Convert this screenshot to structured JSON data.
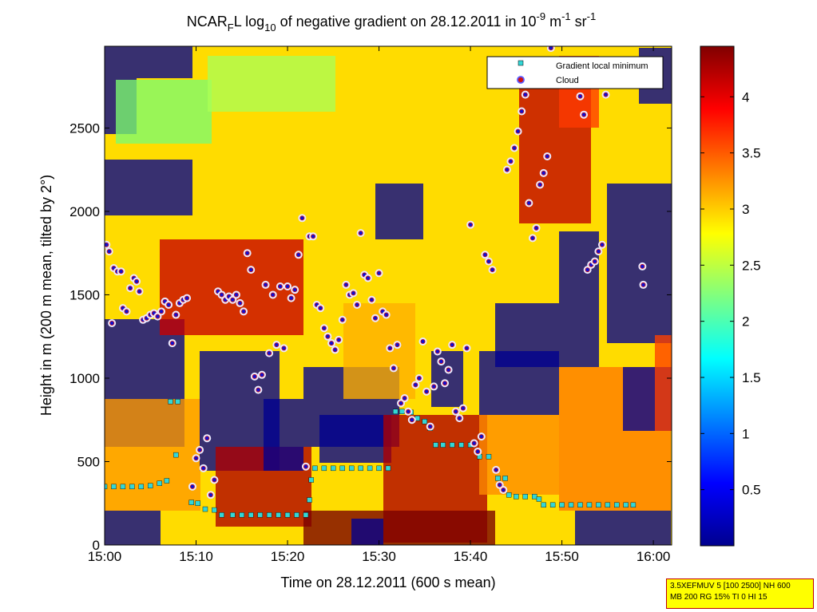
{
  "chart_data": {
    "type": "heatmap",
    "title_parts": [
      "NCAR",
      "F",
      "L log",
      "10",
      " of negative gradient on 28.12.2011 in 10",
      "-9",
      " m",
      "-1",
      " sr",
      "-1"
    ],
    "xlabel": "Time on 28.12.2011 (600 s mean)",
    "ylabel": "Height in m (200 m mean, tilted by 2°)",
    "x_ticks": [
      "15:00",
      "15:10",
      "15:20",
      "15:30",
      "15:40",
      "15:50",
      "16:00"
    ],
    "x_range_min": [
      0,
      62
    ],
    "y_ticks": [
      0,
      500,
      1000,
      1500,
      2000,
      2500
    ],
    "ylim": [
      0,
      2990
    ],
    "colorbar": {
      "ticks": [
        "0.5",
        "1",
        "1.5",
        "2",
        "2.5",
        "3",
        "3.5",
        "4"
      ],
      "values": [
        0.5,
        1,
        1.5,
        2,
        2.5,
        3,
        3.5,
        4
      ],
      "range": [
        0,
        4.45
      ]
    },
    "legend": {
      "placement": "top-right",
      "entries": [
        {
          "label": "Gradient local minimum",
          "marker": "square",
          "color": "#33d6d6"
        },
        {
          "label": "Cloud",
          "marker": "circle",
          "color": "#d01010"
        }
      ]
    },
    "series": [
      {
        "name": "Gradient local minimum",
        "points": [
          [
            0.0,
            350
          ],
          [
            1.0,
            350
          ],
          [
            2.0,
            350
          ],
          [
            3.0,
            350
          ],
          [
            4.0,
            350
          ],
          [
            5.0,
            355
          ],
          [
            6.0,
            370
          ],
          [
            6.8,
            385
          ],
          [
            7.2,
            860
          ],
          [
            8.0,
            860
          ],
          [
            7.8,
            540
          ],
          [
            9.5,
            255
          ],
          [
            10.2,
            250
          ],
          [
            11.0,
            215
          ],
          [
            12.0,
            210
          ],
          [
            12.8,
            180
          ],
          [
            14.0,
            180
          ],
          [
            15.0,
            180
          ],
          [
            16.0,
            180
          ],
          [
            17.0,
            180
          ],
          [
            18.0,
            180
          ],
          [
            19.0,
            180
          ],
          [
            20.0,
            180
          ],
          [
            21.0,
            180
          ],
          [
            22.0,
            180
          ],
          [
            22.4,
            270
          ],
          [
            22.6,
            390
          ],
          [
            23.0,
            460
          ],
          [
            24.0,
            460
          ],
          [
            25.0,
            460
          ],
          [
            26.0,
            460
          ],
          [
            27.0,
            460
          ],
          [
            28.0,
            460
          ],
          [
            29.0,
            460
          ],
          [
            30.0,
            460
          ],
          [
            31.0,
            460
          ],
          [
            31.8,
            800
          ],
          [
            32.5,
            800
          ],
          [
            33.5,
            795
          ],
          [
            34.2,
            760
          ],
          [
            35.0,
            740
          ],
          [
            35.6,
            700
          ],
          [
            36.2,
            600
          ],
          [
            37.0,
            600
          ],
          [
            38.0,
            600
          ],
          [
            39.0,
            600
          ],
          [
            40.0,
            600
          ],
          [
            41.0,
            530
          ],
          [
            42.0,
            530
          ],
          [
            43.0,
            400
          ],
          [
            43.8,
            400
          ],
          [
            44.2,
            300
          ],
          [
            45.0,
            290
          ],
          [
            46.0,
            290
          ],
          [
            47.0,
            290
          ],
          [
            47.5,
            275
          ],
          [
            48.0,
            240
          ],
          [
            49.0,
            240
          ],
          [
            50.0,
            240
          ],
          [
            51.0,
            240
          ],
          [
            52.0,
            240
          ],
          [
            53.0,
            240
          ],
          [
            54.0,
            240
          ],
          [
            55.0,
            240
          ],
          [
            56.0,
            240
          ],
          [
            57.0,
            240
          ],
          [
            57.8,
            240
          ]
        ]
      },
      {
        "name": "Cloud",
        "points": [
          [
            0.2,
            1800
          ],
          [
            0.5,
            1760
          ],
          [
            0.8,
            1330
          ],
          [
            1.0,
            1660
          ],
          [
            1.4,
            1640
          ],
          [
            1.8,
            1640
          ],
          [
            2.0,
            1420
          ],
          [
            2.4,
            1400
          ],
          [
            2.8,
            1540
          ],
          [
            3.2,
            1600
          ],
          [
            3.5,
            1580
          ],
          [
            3.8,
            1520
          ],
          [
            4.2,
            1350
          ],
          [
            4.6,
            1360
          ],
          [
            5.0,
            1380
          ],
          [
            5.4,
            1390
          ],
          [
            5.8,
            1370
          ],
          [
            6.2,
            1400
          ],
          [
            6.6,
            1460
          ],
          [
            7.0,
            1440
          ],
          [
            7.4,
            1210
          ],
          [
            7.8,
            1380
          ],
          [
            8.2,
            1450
          ],
          [
            8.6,
            1470
          ],
          [
            9.0,
            1480
          ],
          [
            9.6,
            350
          ],
          [
            10.0,
            520
          ],
          [
            10.4,
            570
          ],
          [
            10.8,
            460
          ],
          [
            11.2,
            640
          ],
          [
            11.6,
            300
          ],
          [
            12.0,
            390
          ],
          [
            12.4,
            1520
          ],
          [
            12.8,
            1500
          ],
          [
            13.2,
            1470
          ],
          [
            13.6,
            1490
          ],
          [
            14.0,
            1470
          ],
          [
            14.4,
            1500
          ],
          [
            14.8,
            1450
          ],
          [
            15.2,
            1400
          ],
          [
            15.6,
            1750
          ],
          [
            16.0,
            1650
          ],
          [
            16.4,
            1010
          ],
          [
            16.8,
            930
          ],
          [
            17.2,
            1020
          ],
          [
            17.6,
            1560
          ],
          [
            18.0,
            1150
          ],
          [
            18.4,
            1500
          ],
          [
            18.8,
            1200
          ],
          [
            19.2,
            1550
          ],
          [
            19.6,
            1180
          ],
          [
            20.0,
            1550
          ],
          [
            20.4,
            1480
          ],
          [
            20.8,
            1530
          ],
          [
            21.2,
            1740
          ],
          [
            21.6,
            1960
          ],
          [
            22.0,
            470
          ],
          [
            22.4,
            1850
          ],
          [
            22.8,
            1850
          ],
          [
            23.2,
            1440
          ],
          [
            23.6,
            1420
          ],
          [
            24.0,
            1300
          ],
          [
            24.4,
            1250
          ],
          [
            24.8,
            1210
          ],
          [
            25.2,
            1170
          ],
          [
            25.6,
            1230
          ],
          [
            26.0,
            1350
          ],
          [
            26.4,
            1560
          ],
          [
            26.8,
            1500
          ],
          [
            27.2,
            1510
          ],
          [
            27.6,
            1440
          ],
          [
            28.0,
            1870
          ],
          [
            28.4,
            1620
          ],
          [
            28.8,
            1600
          ],
          [
            29.2,
            1470
          ],
          [
            29.6,
            1360
          ],
          [
            30.0,
            1630
          ],
          [
            30.4,
            1400
          ],
          [
            30.8,
            1380
          ],
          [
            31.2,
            1180
          ],
          [
            31.6,
            1060
          ],
          [
            32.0,
            1200
          ],
          [
            32.4,
            850
          ],
          [
            32.8,
            880
          ],
          [
            33.2,
            800
          ],
          [
            33.6,
            750
          ],
          [
            34.0,
            960
          ],
          [
            34.4,
            1000
          ],
          [
            34.8,
            1220
          ],
          [
            35.2,
            920
          ],
          [
            35.6,
            710
          ],
          [
            36.0,
            950
          ],
          [
            36.4,
            1160
          ],
          [
            36.8,
            1100
          ],
          [
            37.2,
            970
          ],
          [
            37.6,
            1050
          ],
          [
            38.0,
            1200
          ],
          [
            38.4,
            800
          ],
          [
            38.8,
            760
          ],
          [
            39.2,
            820
          ],
          [
            39.6,
            1180
          ],
          [
            40.0,
            1920
          ],
          [
            40.4,
            610
          ],
          [
            40.8,
            560
          ],
          [
            41.2,
            650
          ],
          [
            41.6,
            1740
          ],
          [
            42.0,
            1700
          ],
          [
            42.4,
            1650
          ],
          [
            42.8,
            450
          ],
          [
            43.2,
            360
          ],
          [
            43.6,
            330
          ],
          [
            44.0,
            2250
          ],
          [
            44.4,
            2300
          ],
          [
            44.8,
            2380
          ],
          [
            45.2,
            2480
          ],
          [
            45.6,
            2600
          ],
          [
            46.0,
            2700
          ],
          [
            46.4,
            2050
          ],
          [
            46.8,
            1840
          ],
          [
            47.2,
            1900
          ],
          [
            47.6,
            2160
          ],
          [
            48.0,
            2230
          ],
          [
            48.4,
            2330
          ],
          [
            48.8,
            2980
          ],
          [
            52.0,
            2690
          ],
          [
            52.4,
            2580
          ],
          [
            52.8,
            1650
          ],
          [
            53.2,
            1680
          ],
          [
            53.6,
            1700
          ],
          [
            54.0,
            1760
          ],
          [
            54.4,
            1800
          ],
          [
            54.8,
            2700
          ],
          [
            58.8,
            1670
          ],
          [
            58.9,
            1560
          ]
        ]
      }
    ]
  },
  "footnote": {
    "line1": "3.5XEFMUV 5 [100 2500] NH 600",
    "line2": "MB 200 RG 15% TI 0 HI 15"
  }
}
